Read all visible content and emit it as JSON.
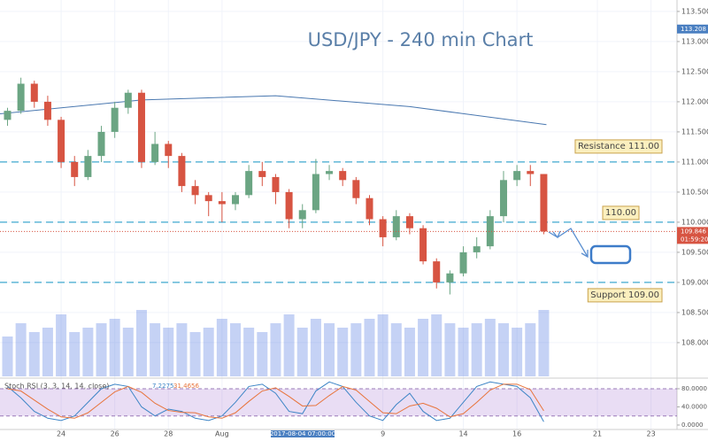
{
  "chart_data": [
    {
      "type": "candlestick",
      "title": "USD/JPY - 240 min Chart",
      "x": [
        -2,
        -1.5,
        -1,
        -0.5,
        0,
        0.5,
        1,
        1.5,
        2,
        2.5,
        3,
        3.5,
        4,
        4.5,
        5,
        5.5,
        6,
        6.5,
        7,
        7.5,
        8,
        8.5,
        9,
        9.5,
        10,
        10.5,
        11,
        11.5,
        12,
        12.5,
        13,
        13.5,
        14,
        14.5,
        15,
        15.5,
        16,
        16.5,
        17,
        17.5,
        18
      ],
      "open": [
        111.7,
        111.85,
        112.3,
        112.0,
        111.7,
        111.0,
        110.75,
        111.1,
        111.5,
        111.9,
        112.15,
        111.0,
        111.3,
        111.1,
        110.6,
        110.45,
        110.35,
        110.3,
        110.45,
        110.85,
        110.75,
        110.5,
        110.05,
        110.2,
        110.8,
        110.85,
        110.7,
        110.4,
        110.05,
        109.75,
        110.1,
        109.9,
        109.35,
        109.0,
        109.15,
        109.5,
        109.6,
        110.1,
        110.7,
        110.85,
        110.8
      ],
      "high": [
        111.9,
        112.4,
        112.35,
        112.1,
        111.75,
        111.1,
        111.2,
        111.6,
        112.0,
        112.2,
        112.2,
        111.5,
        111.35,
        111.15,
        110.7,
        110.5,
        110.5,
        110.5,
        110.95,
        111.0,
        110.8,
        110.55,
        110.3,
        111.05,
        110.95,
        110.9,
        110.75,
        110.45,
        110.1,
        110.2,
        110.15,
        109.95,
        109.4,
        109.2,
        109.6,
        109.75,
        110.2,
        110.85,
        110.95,
        110.95,
        110.8
      ],
      "low": [
        111.6,
        111.8,
        111.9,
        111.6,
        110.9,
        110.6,
        110.7,
        111.0,
        111.4,
        111.8,
        110.9,
        110.95,
        110.9,
        110.5,
        110.3,
        110.1,
        110.0,
        110.2,
        110.4,
        110.6,
        110.3,
        109.9,
        109.9,
        110.15,
        110.7,
        110.6,
        110.3,
        109.95,
        109.6,
        109.7,
        109.8,
        109.3,
        108.9,
        108.8,
        109.1,
        109.4,
        109.55,
        110.0,
        110.6,
        110.6,
        109.8
      ],
      "close": [
        111.85,
        112.3,
        112.0,
        111.7,
        111.0,
        110.75,
        111.1,
        111.5,
        111.9,
        112.15,
        111.0,
        111.3,
        111.1,
        110.6,
        110.45,
        110.35,
        110.3,
        110.45,
        110.85,
        110.75,
        110.5,
        110.05,
        110.2,
        110.8,
        110.85,
        110.7,
        110.4,
        110.05,
        109.75,
        110.1,
        109.9,
        109.35,
        109.0,
        109.15,
        109.5,
        109.6,
        110.1,
        110.7,
        110.85,
        110.8,
        109.846
      ],
      "volume": [
        45,
        60,
        50,
        55,
        70,
        50,
        55,
        60,
        65,
        55,
        75,
        60,
        55,
        60,
        50,
        55,
        65,
        60,
        55,
        50,
        60,
        70,
        55,
        65,
        60,
        55,
        60,
        65,
        70,
        60,
        55,
        65,
        70,
        60,
        55,
        60,
        65,
        60,
        55,
        60,
        75
      ],
      "up_color": "#6ba583",
      "down_color": "#d75442",
      "moving_average": {
        "x": [
          -2.28,
          3,
          8,
          13,
          18.1
        ],
        "values": [
          111.8,
          112.03,
          112.1,
          111.92,
          111.62
        ],
        "color": "#4a78b0"
      },
      "levels": [
        {
          "value": 111,
          "label": "Resistance 111.00"
        },
        {
          "value": 110,
          "label": "110.00"
        },
        {
          "value": 109,
          "label": "Support 109.00"
        }
      ],
      "highlighted_price": 113.208,
      "xlim": [
        -2.28,
        22.97
      ],
      "xticks": [
        {
          "value": 0,
          "label": "24"
        },
        {
          "value": 2,
          "label": "26"
        },
        {
          "value": 4,
          "label": "28"
        },
        {
          "value": 6,
          "label": "Aug"
        },
        {
          "value": 12,
          "label": "9"
        },
        {
          "value": 15,
          "label": "14"
        },
        {
          "value": 17,
          "label": "16"
        },
        {
          "value": 20,
          "label": "21"
        },
        {
          "value": 22,
          "label": "23"
        }
      ],
      "ylim": [
        107.44,
        113.69
      ],
      "yticks": [
        {
          "value": 108,
          "label": "108.000"
        },
        {
          "value": 108.5,
          "label": "108.500"
        },
        {
          "value": 109,
          "label": "109.000"
        },
        {
          "value": 109.5,
          "label": "109.500"
        },
        {
          "value": 110,
          "label": "110.000"
        },
        {
          "value": 110.5,
          "label": "110.500"
        },
        {
          "value": 111,
          "label": "111.000"
        },
        {
          "value": 111.5,
          "label": "111.500"
        },
        {
          "value": 112,
          "label": "112.000"
        },
        {
          "value": 112.5,
          "label": "112.500"
        },
        {
          "value": 113,
          "label": "113.000"
        },
        {
          "value": 113.5,
          "label": "113.500"
        }
      ]
    },
    {
      "type": "line",
      "title": "Stoch RSI (3, 3, 14, 14, close)",
      "series": [
        {
          "color": "#3d85c6",
          "values": [
            85,
            60,
            30,
            15,
            10,
            20,
            50,
            80,
            90,
            85,
            40,
            20,
            35,
            30,
            15,
            10,
            20,
            50,
            85,
            90,
            70,
            30,
            25,
            75,
            95,
            85,
            50,
            20,
            10,
            45,
            70,
            30,
            10,
            15,
            50,
            85,
            95,
            90,
            85,
            60,
            7.2275
          ]
        },
        {
          "color": "#e8743b",
          "values": [
            80,
            75,
            55,
            35,
            18,
            15,
            27,
            50,
            73,
            85,
            72,
            48,
            32,
            28,
            27,
            18,
            15,
            27,
            52,
            75,
            82,
            63,
            42,
            43,
            65,
            85,
            77,
            52,
            27,
            25,
            42,
            48,
            37,
            18,
            25,
            50,
            77,
            90,
            90,
            78,
            31.4656
          ]
        }
      ],
      "band": [
        20,
        80
      ],
      "ylim": [
        -9.8,
        97.5
      ],
      "yticks": [
        {
          "value": 0,
          "label": "0.0000"
        },
        {
          "value": 40,
          "label": "40.0000"
        },
        {
          "value": 80,
          "label": "80.0000"
        }
      ]
    }
  ],
  "countdown": "01:59:20",
  "crosshair_time": "2017-08-04 07:00:00"
}
